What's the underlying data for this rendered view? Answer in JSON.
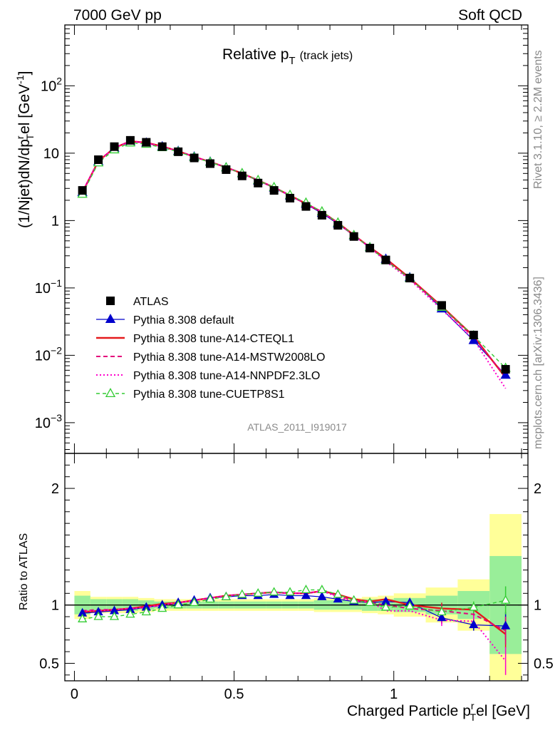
{
  "header": {
    "left": "7000 GeV pp",
    "right": "Soft QCD"
  },
  "plot_title": {
    "main": "Relative p",
    "sub": "T",
    "suffix": "(track jets)"
  },
  "side_labels": {
    "rivet": "Rivet 3.1.10, ≥ 2.2M events",
    "mcplots": "mcplots.cern.ch [arXiv:1306.3436]"
  },
  "watermark": "ATLAS_2011_I919017",
  "axes": {
    "main_ylabel": "(1/Njet)dN/dp",
    "main_ylabel_sup1": "r",
    "main_ylabel_sub": "T",
    "main_ylabel_tail": "el [GeV",
    "main_ylabel_sup2": "-1",
    "main_ylabel_end": "]",
    "ratio_ylabel": "Ratio to ATLAS",
    "xlabel_main": "Charged Particle p",
    "xlabel_sup": "r",
    "xlabel_sub": "T",
    "xlabel_tail": "el [GeV]"
  },
  "tick_labels": {
    "main_y": [
      "10",
      "10",
      "1",
      "10",
      "10",
      "10"
    ],
    "main_y_exp": [
      "2",
      "",
      "",
      "−1",
      "−2",
      "−3"
    ],
    "ratio_y": [
      "2",
      "1",
      "0.5"
    ],
    "ratio_y_right": [
      "2",
      "1",
      "0.5"
    ],
    "x": [
      "0",
      "0.5",
      "1"
    ]
  },
  "legend": [
    {
      "label": "ATLAS",
      "color": "#000000",
      "style": "data"
    },
    {
      "label": "Pythia 8.308 default",
      "color": "#0000cc",
      "style": "solid-triangle"
    },
    {
      "label": "Pythia 8.308 tune-A14-CTEQL1",
      "color": "#e41a1c",
      "style": "solid-thick"
    },
    {
      "label": "Pythia 8.308 tune-A14-MSTW2008LO",
      "color": "#e4007c",
      "style": "dashed"
    },
    {
      "label": "Pythia 8.308 tune-A14-NNPDF2.3LO",
      "color": "#ff00cc",
      "style": "dotted"
    },
    {
      "label": "Pythia 8.308 tune-CUETP8S1",
      "color": "#33cc33",
      "style": "dashed-open-triangle"
    }
  ],
  "chart_data": {
    "type": "line",
    "x": [
      0.025,
      0.075,
      0.125,
      0.175,
      0.225,
      0.275,
      0.325,
      0.375,
      0.425,
      0.475,
      0.525,
      0.575,
      0.625,
      0.675,
      0.725,
      0.775,
      0.825,
      0.875,
      0.925,
      0.975,
      1.05,
      1.15,
      1.25,
      1.35
    ],
    "x_bins": [
      [
        0.0,
        0.05
      ],
      [
        0.05,
        0.1
      ],
      [
        0.1,
        0.15
      ],
      [
        0.15,
        0.2
      ],
      [
        0.2,
        0.25
      ],
      [
        0.25,
        0.3
      ],
      [
        0.3,
        0.35
      ],
      [
        0.35,
        0.4
      ],
      [
        0.4,
        0.45
      ],
      [
        0.45,
        0.5
      ],
      [
        0.5,
        0.55
      ],
      [
        0.55,
        0.6
      ],
      [
        0.6,
        0.65
      ],
      [
        0.65,
        0.7
      ],
      [
        0.7,
        0.75
      ],
      [
        0.75,
        0.8
      ],
      [
        0.8,
        0.85
      ],
      [
        0.85,
        0.9
      ],
      [
        0.9,
        0.95
      ],
      [
        0.95,
        1.0
      ],
      [
        1.0,
        1.1
      ],
      [
        1.1,
        1.2
      ],
      [
        1.2,
        1.3
      ],
      [
        1.3,
        1.4
      ]
    ],
    "xlim": [
      -0.03,
      1.42
    ],
    "ylim_main": [
      0.00035,
      800
    ],
    "ylim_ratio": [
      0.35,
      2.3
    ],
    "y_scale_main": "log",
    "data": [
      2.8,
      8.0,
      12.5,
      15.5,
      14.5,
      12.5,
      10.5,
      8.5,
      7.0,
      5.7,
      4.6,
      3.6,
      2.8,
      2.15,
      1.62,
      1.2,
      0.85,
      0.58,
      0.39,
      0.26,
      0.14,
      0.055,
      0.02,
      0.0062
    ],
    "ratio_band_inner": [
      0.08,
      0.05,
      0.05,
      0.05,
      0.04,
      0.03,
      0.03,
      0.03,
      0.03,
      0.03,
      0.03,
      0.03,
      0.03,
      0.03,
      0.03,
      0.04,
      0.04,
      0.04,
      0.05,
      0.05,
      0.06,
      0.08,
      0.12,
      0.42
    ],
    "ratio_band_outer": [
      0.12,
      0.07,
      0.07,
      0.07,
      0.06,
      0.05,
      0.05,
      0.05,
      0.05,
      0.05,
      0.05,
      0.05,
      0.05,
      0.05,
      0.05,
      0.06,
      0.06,
      0.06,
      0.07,
      0.08,
      0.1,
      0.15,
      0.22,
      0.78
    ],
    "series": [
      {
        "name": "Pythia 8.308 default",
        "ratio": [
          0.93,
          0.94,
          0.95,
          0.96,
          0.98,
          1.0,
          1.02,
          1.04,
          1.06,
          1.07,
          1.08,
          1.08,
          1.09,
          1.08,
          1.08,
          1.07,
          1.05,
          1.03,
          1.02,
          1.03,
          1.02,
          0.89,
          0.83,
          0.82
        ]
      },
      {
        "name": "Pythia 8.308 tune-A14-CTEQL1",
        "ratio": [
          0.94,
          0.95,
          0.96,
          0.97,
          0.99,
          1.01,
          1.02,
          1.04,
          1.06,
          1.08,
          1.09,
          1.1,
          1.11,
          1.1,
          1.1,
          1.12,
          1.09,
          1.05,
          1.03,
          1.05,
          1.0,
          0.97,
          0.96,
          0.75
        ]
      },
      {
        "name": "Pythia 8.308 tune-A14-MSTW2008LO",
        "ratio": [
          0.95,
          0.96,
          0.96,
          0.97,
          0.98,
          1.0,
          1.02,
          1.04,
          1.06,
          1.08,
          1.09,
          1.1,
          1.11,
          1.1,
          1.1,
          1.12,
          1.08,
          1.04,
          1.02,
          1.0,
          0.97,
          0.95,
          0.92,
          0.78
        ]
      },
      {
        "name": "Pythia 8.308 tune-A14-NNPDF2.3LO",
        "ratio": [
          0.95,
          0.95,
          0.96,
          0.97,
          0.98,
          1.0,
          1.02,
          1.04,
          1.06,
          1.08,
          1.09,
          1.1,
          1.11,
          1.1,
          1.1,
          1.12,
          1.07,
          1.03,
          1.03,
          0.95,
          0.95,
          0.87,
          0.86,
          0.52
        ]
      },
      {
        "name": "Pythia 8.308 tune-CUETP8S1",
        "ratio": [
          0.88,
          0.9,
          0.9,
          0.92,
          0.94,
          0.97,
          1.0,
          1.02,
          1.05,
          1.07,
          1.09,
          1.1,
          1.11,
          1.11,
          1.13,
          1.13,
          1.09,
          1.04,
          1.02,
          0.98,
          0.99,
          0.94,
          0.98,
          1.04
        ]
      }
    ]
  }
}
